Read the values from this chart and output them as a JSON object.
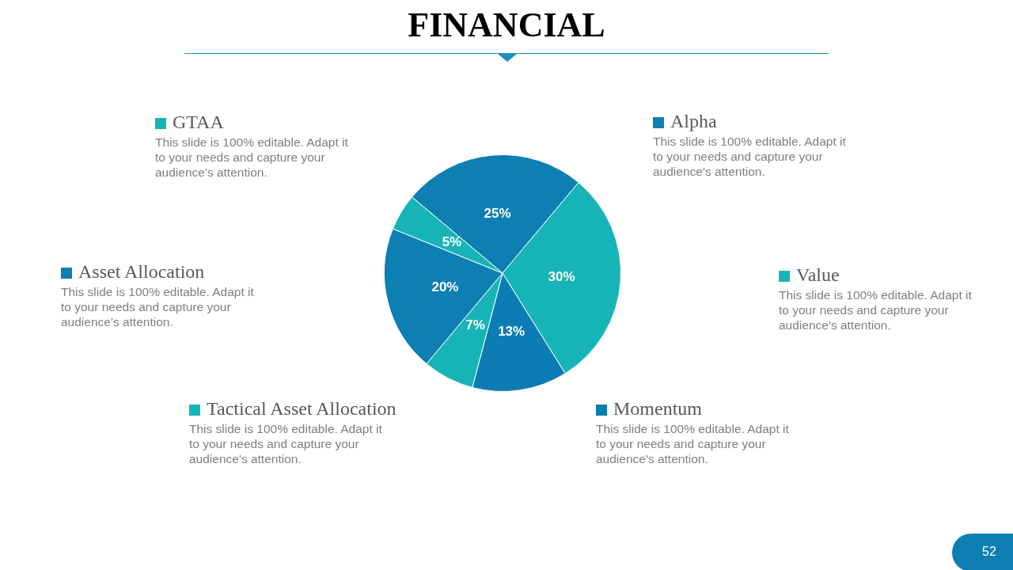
{
  "chart_data": {
    "type": "pie",
    "title": "FINANCIAL",
    "categories": [
      "Alpha",
      "Value",
      "Momentum",
      "Tactical Asset Allocation",
      "Asset Allocation",
      "GTAA"
    ],
    "values": [
      25,
      30,
      13,
      7,
      20,
      5
    ],
    "colors": [
      "#0d7fb3",
      "#17b4b7",
      "#0b7db4",
      "#17b4b7",
      "#0d7fb3",
      "#17b4b7"
    ],
    "value_labels": [
      "25%",
      "30%",
      "13%",
      "7%",
      "20%",
      "5%"
    ],
    "legend": "left",
    "annotations": [
      "This slide is 100% editable. Adapt it to your needs and capture your audience's attention.",
      "This slide is 100% editable. Adapt it to your needs and capture your audience's attention.",
      "This slide is 100% editable. Adapt it to your needs and capture your audience's attention.",
      "This slide is 100% editable. Adapt it to your needs and capture your audience's attention.",
      "This slide is 100% editable. Adapt it to your needs and capture your audience's attention.",
      "This slide is 100% editable. Adapt it to your needs and capture your audience's attention.",
      "52"
    ]
  }
}
